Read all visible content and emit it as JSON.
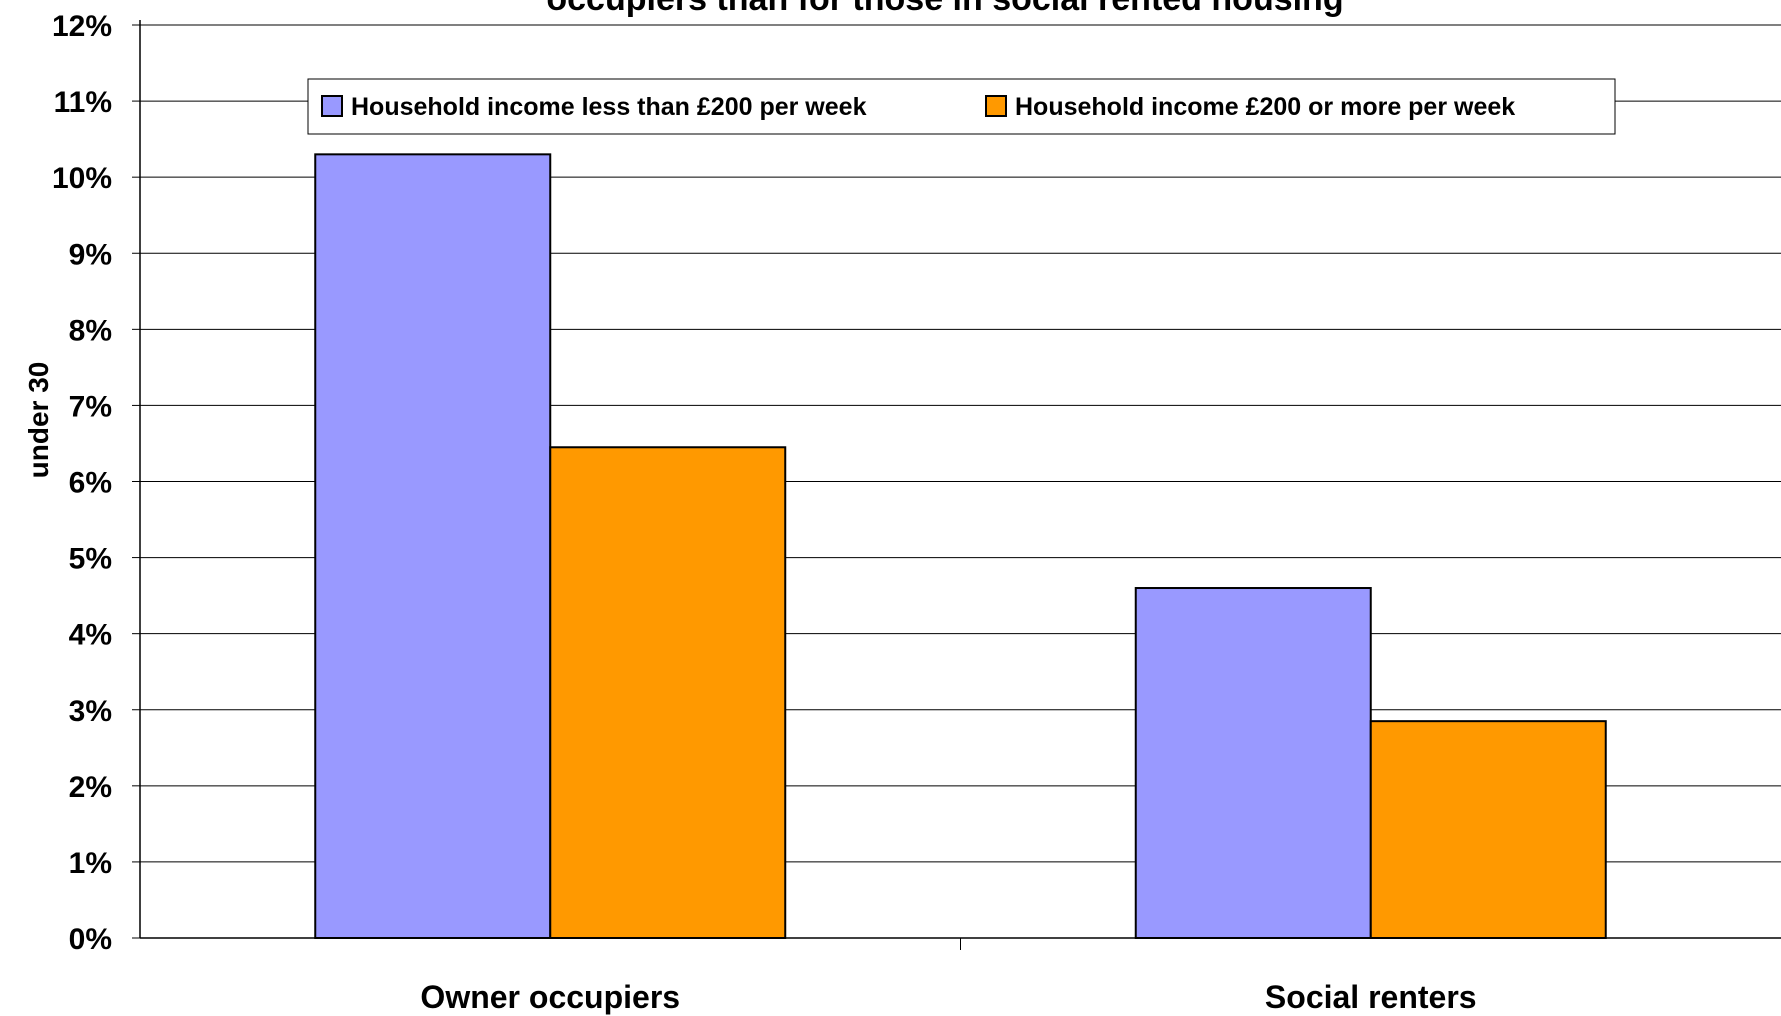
{
  "chart_data": {
    "type": "bar",
    "title": "occupiers than for those in social rented housing",
    "ylabel": "under 30",
    "xlabel": "",
    "categories": [
      "Owner occupiers",
      "Social renters"
    ],
    "series": [
      {
        "name": "Household income less than £200 per week",
        "color": "#9999ff",
        "values": [
          10.3,
          4.6
        ]
      },
      {
        "name": "Household income £200 or more per week",
        "color": "#ff9900",
        "values": [
          6.45,
          2.85
        ]
      }
    ],
    "ylim": [
      0,
      12
    ],
    "yticks": [
      "0%",
      "1%",
      "2%",
      "3%",
      "4%",
      "5%",
      "6%",
      "7%",
      "8%",
      "9%",
      "10%",
      "11%",
      "12%"
    ],
    "grid": true,
    "legend_position": "top"
  }
}
